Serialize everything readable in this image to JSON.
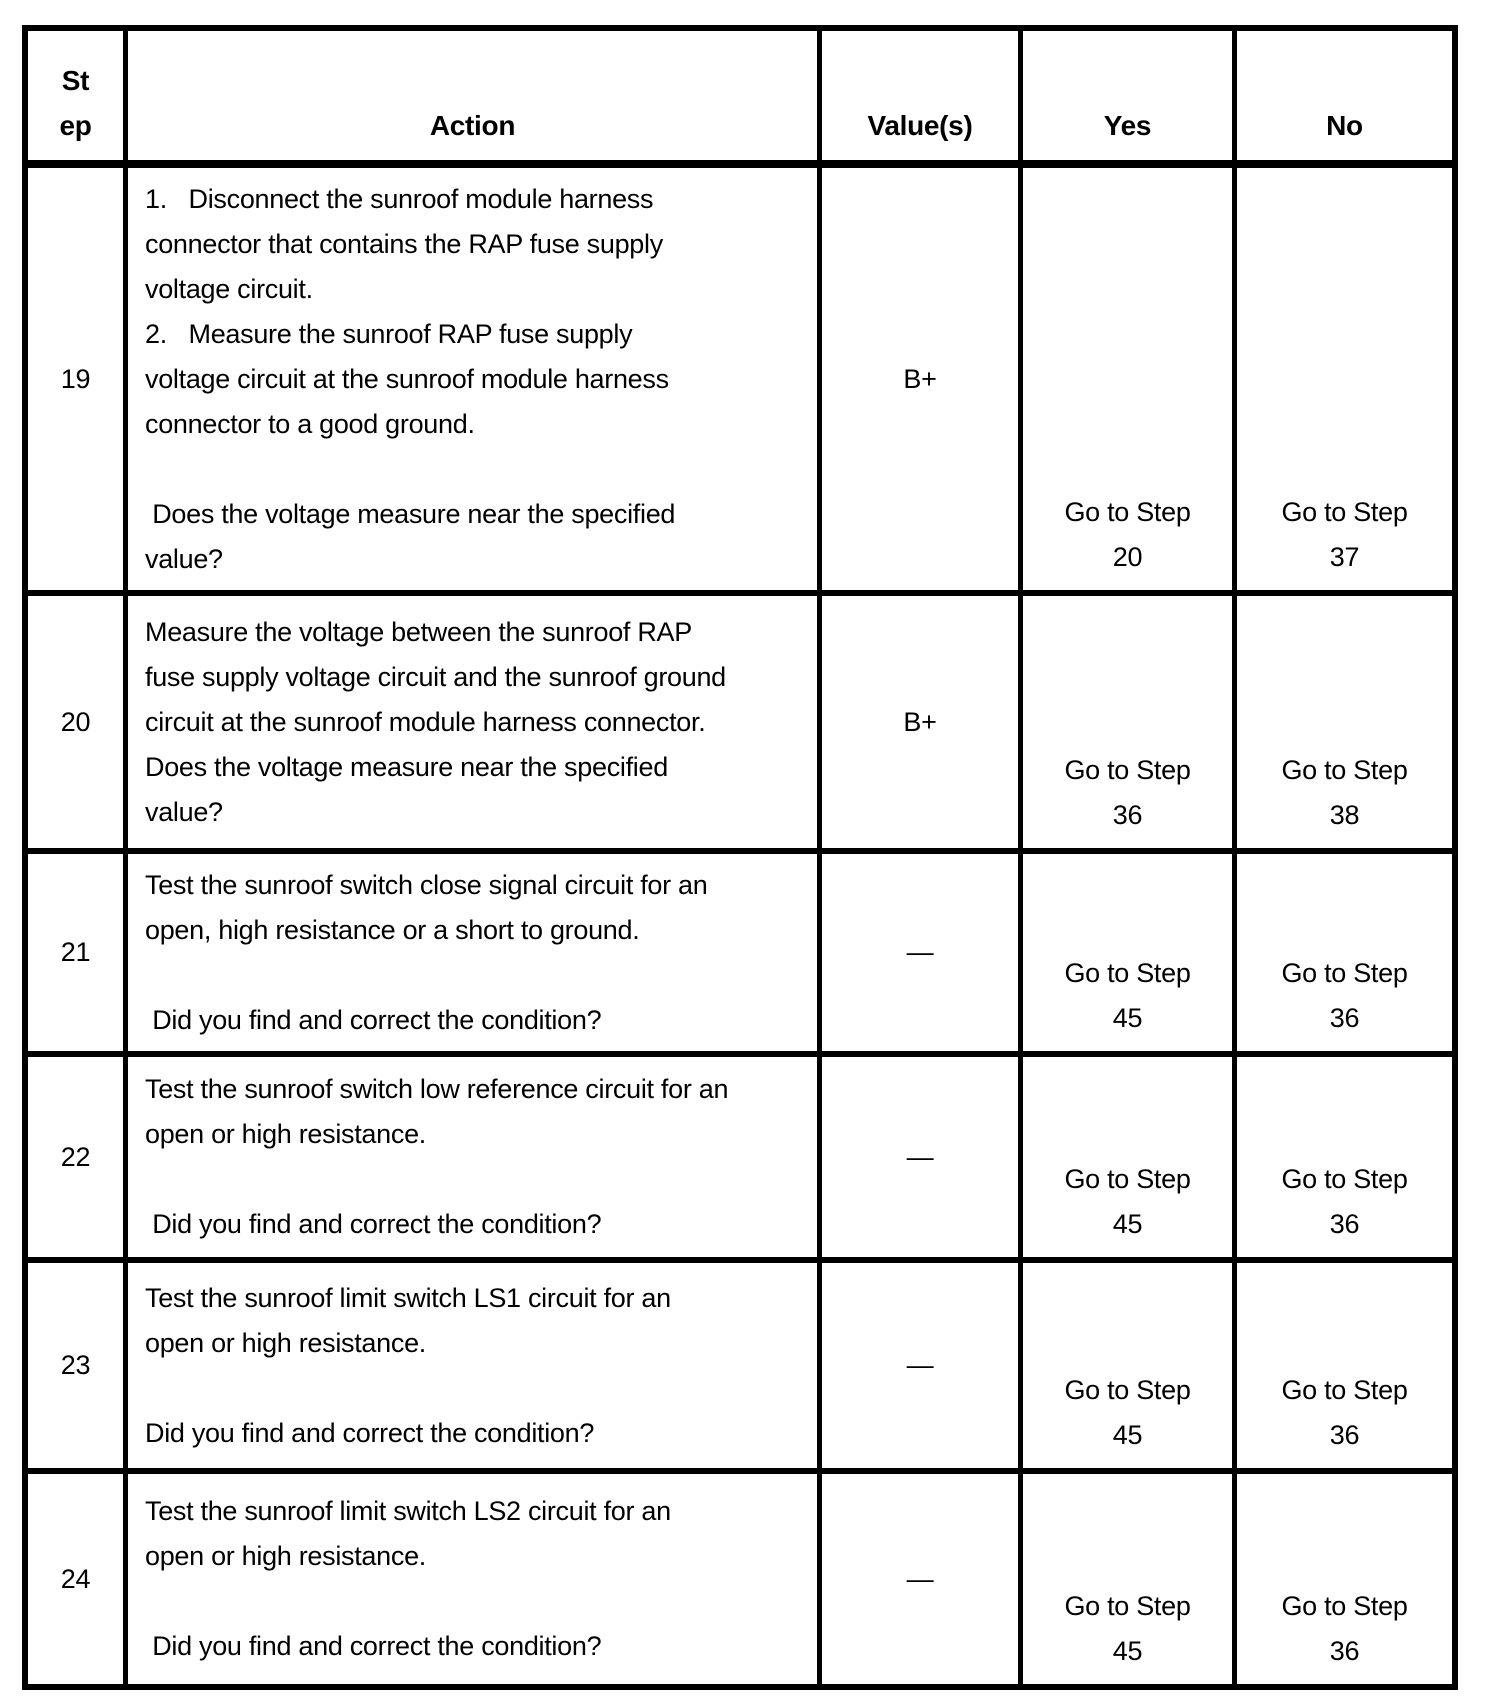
{
  "page": {
    "background": "#ffffff"
  },
  "table": {
    "border_color": "#000000",
    "text_color": "#000000",
    "headers": {
      "step": "St\nep",
      "action": "Action",
      "values": "Value(s)",
      "yes": "Yes",
      "no": "No"
    },
    "rows": [
      {
        "step": "19",
        "action_lines": [
          "1.   Disconnect the sunroof module harness",
          "connector that contains the RAP fuse supply",
          "voltage circuit.",
          "2.   Measure the sunroof RAP fuse supply",
          "voltage circuit at the sunroof module harness",
          "connector to a good ground.",
          "",
          " Does the voltage measure near the specified",
          "value?"
        ],
        "value": "B+",
        "yes": {
          "label": "Go to Step",
          "step": "20"
        },
        "no": {
          "label": "Go to Step",
          "step": "37"
        }
      },
      {
        "step": "20",
        "action_lines": [
          "Measure the voltage between the sunroof RAP",
          "fuse supply voltage circuit and the sunroof ground",
          "circuit at the sunroof module harness connector.",
          "Does the voltage measure near the specified",
          "value?"
        ],
        "value": "B+",
        "yes": {
          "label": "Go to Step",
          "step": "36"
        },
        "no": {
          "label": "Go to Step",
          "step": "38"
        }
      },
      {
        "step": "21",
        "action_lines": [
          "Test the sunroof switch close signal circuit for an",
          "open, high resistance or a short to ground.",
          "",
          " Did you find and correct the condition?"
        ],
        "value": "—",
        "yes": {
          "label": "Go to Step",
          "step": "45"
        },
        "no": {
          "label": "Go to Step",
          "step": "36"
        }
      },
      {
        "step": "22",
        "action_lines": [
          "Test the sunroof switch low reference circuit for an",
          "open or high resistance.",
          "",
          " Did you find and correct the condition?"
        ],
        "value": "—",
        "yes": {
          "label": "Go to Step",
          "step": "45"
        },
        "no": {
          "label": "Go to Step",
          "step": "36"
        }
      },
      {
        "step": "23",
        "action_lines": [
          "Test the sunroof limit switch LS1 circuit for an",
          "open or high resistance.",
          "",
          "Did you find and correct the condition?"
        ],
        "value": "—",
        "yes": {
          "label": "Go to Step",
          "step": "45"
        },
        "no": {
          "label": "Go to Step",
          "step": "36"
        }
      },
      {
        "step": "24",
        "action_lines": [
          "Test the sunroof limit switch LS2 circuit for an",
          "open or high resistance.",
          "",
          " Did you find and correct the condition?"
        ],
        "value": "—",
        "yes": {
          "label": "Go to Step",
          "step": "45"
        },
        "no": {
          "label": "Go to Step",
          "step": "36"
        }
      }
    ]
  }
}
